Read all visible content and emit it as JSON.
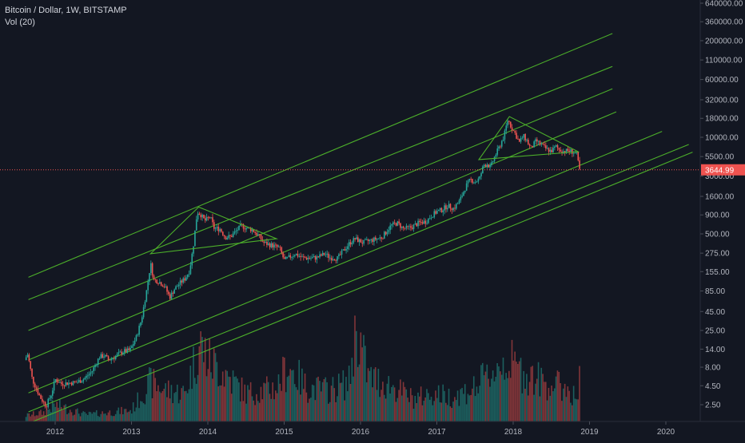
{
  "header": {
    "title": "Bitcoin / Dollar, 1W, BITSTAMP",
    "volume_label": "Vol (20)"
  },
  "colors": {
    "background": "#131722",
    "up": "#26a69a",
    "down": "#ef5350",
    "channel": "#4caf2a",
    "axis_text": "#b2b5be",
    "price_tag": "#ef5350"
  },
  "chart_data": {
    "type": "candlestick",
    "y_scale": "log",
    "y_ticks": [
      "640000.00",
      "360000.00",
      "200000.00",
      "110000.00",
      "60000.00",
      "32000.00",
      "18000.00",
      "10000.00",
      "5500.00",
      "3000.00",
      "1600.00",
      "900.00",
      "500.00",
      "275.00",
      "155.00",
      "85.00",
      "45.00",
      "25.00",
      "14.00",
      "8.00",
      "4.50",
      "2.50"
    ],
    "x_ticks": [
      "2012",
      "2013",
      "2014",
      "2015",
      "2016",
      "2017",
      "2018",
      "2019",
      "2020"
    ],
    "last_price": "3644.99",
    "channels": [
      {
        "x1": 2011.65,
        "y1": 130,
        "x2": 2019.3,
        "y2": 250000
      },
      {
        "x1": 2011.65,
        "y1": 65,
        "x2": 2019.3,
        "y2": 90000
      },
      {
        "x1": 2011.65,
        "y1": 25,
        "x2": 2019.3,
        "y2": 45000
      },
      {
        "x1": 2011.65,
        "y1": 10,
        "x2": 2019.35,
        "y2": 22000
      },
      {
        "x1": 2011.65,
        "y1": 3.6,
        "x2": 2019.95,
        "y2": 12000
      },
      {
        "x1": 2011.65,
        "y1": 2.0,
        "x2": 2020.3,
        "y2": 8000
      },
      {
        "x1": 2011.65,
        "y1": 1.4,
        "x2": 2020.35,
        "y2": 6300
      }
    ],
    "triangles": [
      {
        "x1": 2013.25,
        "y1": 270,
        "x2": 2013.88,
        "y2": 1150,
        "x3": 2014.9,
        "y3": 430
      },
      {
        "x1": 2017.55,
        "y1": 5000,
        "x2": 2017.95,
        "y2": 19000,
        "x3": 2018.85,
        "y3": 6400
      }
    ],
    "price_path": [
      [
        2011.62,
        10
      ],
      [
        2011.66,
        12
      ],
      [
        2011.72,
        5.5
      ],
      [
        2011.82,
        3.2
      ],
      [
        2011.9,
        2.4
      ],
      [
        2011.97,
        3.5
      ],
      [
        2012.02,
        5.5
      ],
      [
        2012.1,
        4.8
      ],
      [
        2012.2,
        4.9
      ],
      [
        2012.3,
        5.0
      ],
      [
        2012.4,
        5.6
      ],
      [
        2012.5,
        7.0
      ],
      [
        2012.6,
        11
      ],
      [
        2012.66,
        11.5
      ],
      [
        2012.72,
        10
      ],
      [
        2012.8,
        11
      ],
      [
        2012.9,
        13
      ],
      [
        2013.0,
        13.5
      ],
      [
        2013.08,
        20
      ],
      [
        2013.15,
        35
      ],
      [
        2013.22,
        90
      ],
      [
        2013.27,
        200
      ],
      [
        2013.31,
        120
      ],
      [
        2013.37,
        115
      ],
      [
        2013.45,
        100
      ],
      [
        2013.52,
        70
      ],
      [
        2013.58,
        90
      ],
      [
        2013.66,
        110
      ],
      [
        2013.72,
        125
      ],
      [
        2013.78,
        160
      ],
      [
        2013.83,
        350
      ],
      [
        2013.88,
        1000
      ],
      [
        2013.93,
        900
      ],
      [
        2013.98,
        750
      ],
      [
        2014.05,
        850
      ],
      [
        2014.1,
        600
      ],
      [
        2014.18,
        580
      ],
      [
        2014.25,
        450
      ],
      [
        2014.32,
        460
      ],
      [
        2014.4,
        560
      ],
      [
        2014.46,
        650
      ],
      [
        2014.52,
        600
      ],
      [
        2014.6,
        570
      ],
      [
        2014.68,
        480
      ],
      [
        2014.75,
        380
      ],
      [
        2014.82,
        360
      ],
      [
        2014.9,
        340
      ],
      [
        2014.96,
        320
      ],
      [
        2015.02,
        220
      ],
      [
        2015.08,
        240
      ],
      [
        2015.16,
        270
      ],
      [
        2015.25,
        240
      ],
      [
        2015.35,
        235
      ],
      [
        2015.45,
        240
      ],
      [
        2015.55,
        270
      ],
      [
        2015.62,
        240
      ],
      [
        2015.72,
        235
      ],
      [
        2015.8,
        300
      ],
      [
        2015.88,
        380
      ],
      [
        2015.95,
        430
      ],
      [
        2016.05,
        380
      ],
      [
        2016.12,
        400
      ],
      [
        2016.2,
        420
      ],
      [
        2016.3,
        450
      ],
      [
        2016.42,
        650
      ],
      [
        2016.5,
        700
      ],
      [
        2016.58,
        590
      ],
      [
        2016.68,
        610
      ],
      [
        2016.78,
        700
      ],
      [
        2016.88,
        740
      ],
      [
        2016.96,
        900
      ],
      [
        2017.02,
        1000
      ],
      [
        2017.08,
        1050
      ],
      [
        2017.16,
        1200
      ],
      [
        2017.24,
        1100
      ],
      [
        2017.32,
        1400
      ],
      [
        2017.4,
        2200
      ],
      [
        2017.46,
        2700
      ],
      [
        2017.52,
        2500
      ],
      [
        2017.58,
        2800
      ],
      [
        2017.63,
        4200
      ],
      [
        2017.68,
        4400
      ],
      [
        2017.72,
        3900
      ],
      [
        2017.78,
        5600
      ],
      [
        2017.84,
        7500
      ],
      [
        2017.9,
        10500
      ],
      [
        2017.95,
        17500
      ],
      [
        2017.99,
        14000
      ],
      [
        2018.04,
        11500
      ],
      [
        2018.1,
        8500
      ],
      [
        2018.15,
        10500
      ],
      [
        2018.2,
        9000
      ],
      [
        2018.25,
        7000
      ],
      [
        2018.32,
        9000
      ],
      [
        2018.38,
        8000
      ],
      [
        2018.45,
        7000
      ],
      [
        2018.52,
        6500
      ],
      [
        2018.58,
        7500
      ],
      [
        2018.62,
        6800
      ],
      [
        2018.68,
        6500
      ],
      [
        2018.74,
        6600
      ],
      [
        2018.8,
        6400
      ],
      [
        2018.86,
        5800
      ],
      [
        2018.88,
        3644.99
      ]
    ],
    "volume_path": [
      [
        2011.6,
        0.05
      ],
      [
        2011.85,
        0.08
      ],
      [
        2012.0,
        0.15
      ],
      [
        2012.4,
        0.06
      ],
      [
        2012.7,
        0.08
      ],
      [
        2013.0,
        0.1
      ],
      [
        2013.25,
        0.35
      ],
      [
        2013.45,
        0.28
      ],
      [
        2013.7,
        0.25
      ],
      [
        2013.9,
        0.7
      ],
      [
        2014.0,
        0.55
      ],
      [
        2014.2,
        0.45
      ],
      [
        2014.5,
        0.25
      ],
      [
        2014.9,
        0.3
      ],
      [
        2015.05,
        0.5
      ],
      [
        2015.3,
        0.3
      ],
      [
        2015.6,
        0.28
      ],
      [
        2015.85,
        0.35
      ],
      [
        2015.95,
        0.85
      ],
      [
        2016.1,
        0.4
      ],
      [
        2016.4,
        0.32
      ],
      [
        2016.7,
        0.2
      ],
      [
        2016.95,
        0.25
      ],
      [
        2017.2,
        0.22
      ],
      [
        2017.5,
        0.3
      ],
      [
        2017.9,
        0.55
      ],
      [
        2018.1,
        0.45
      ],
      [
        2018.4,
        0.35
      ],
      [
        2018.7,
        0.3
      ],
      [
        2018.85,
        0.2
      ],
      [
        2018.88,
        0.5
      ]
    ]
  }
}
